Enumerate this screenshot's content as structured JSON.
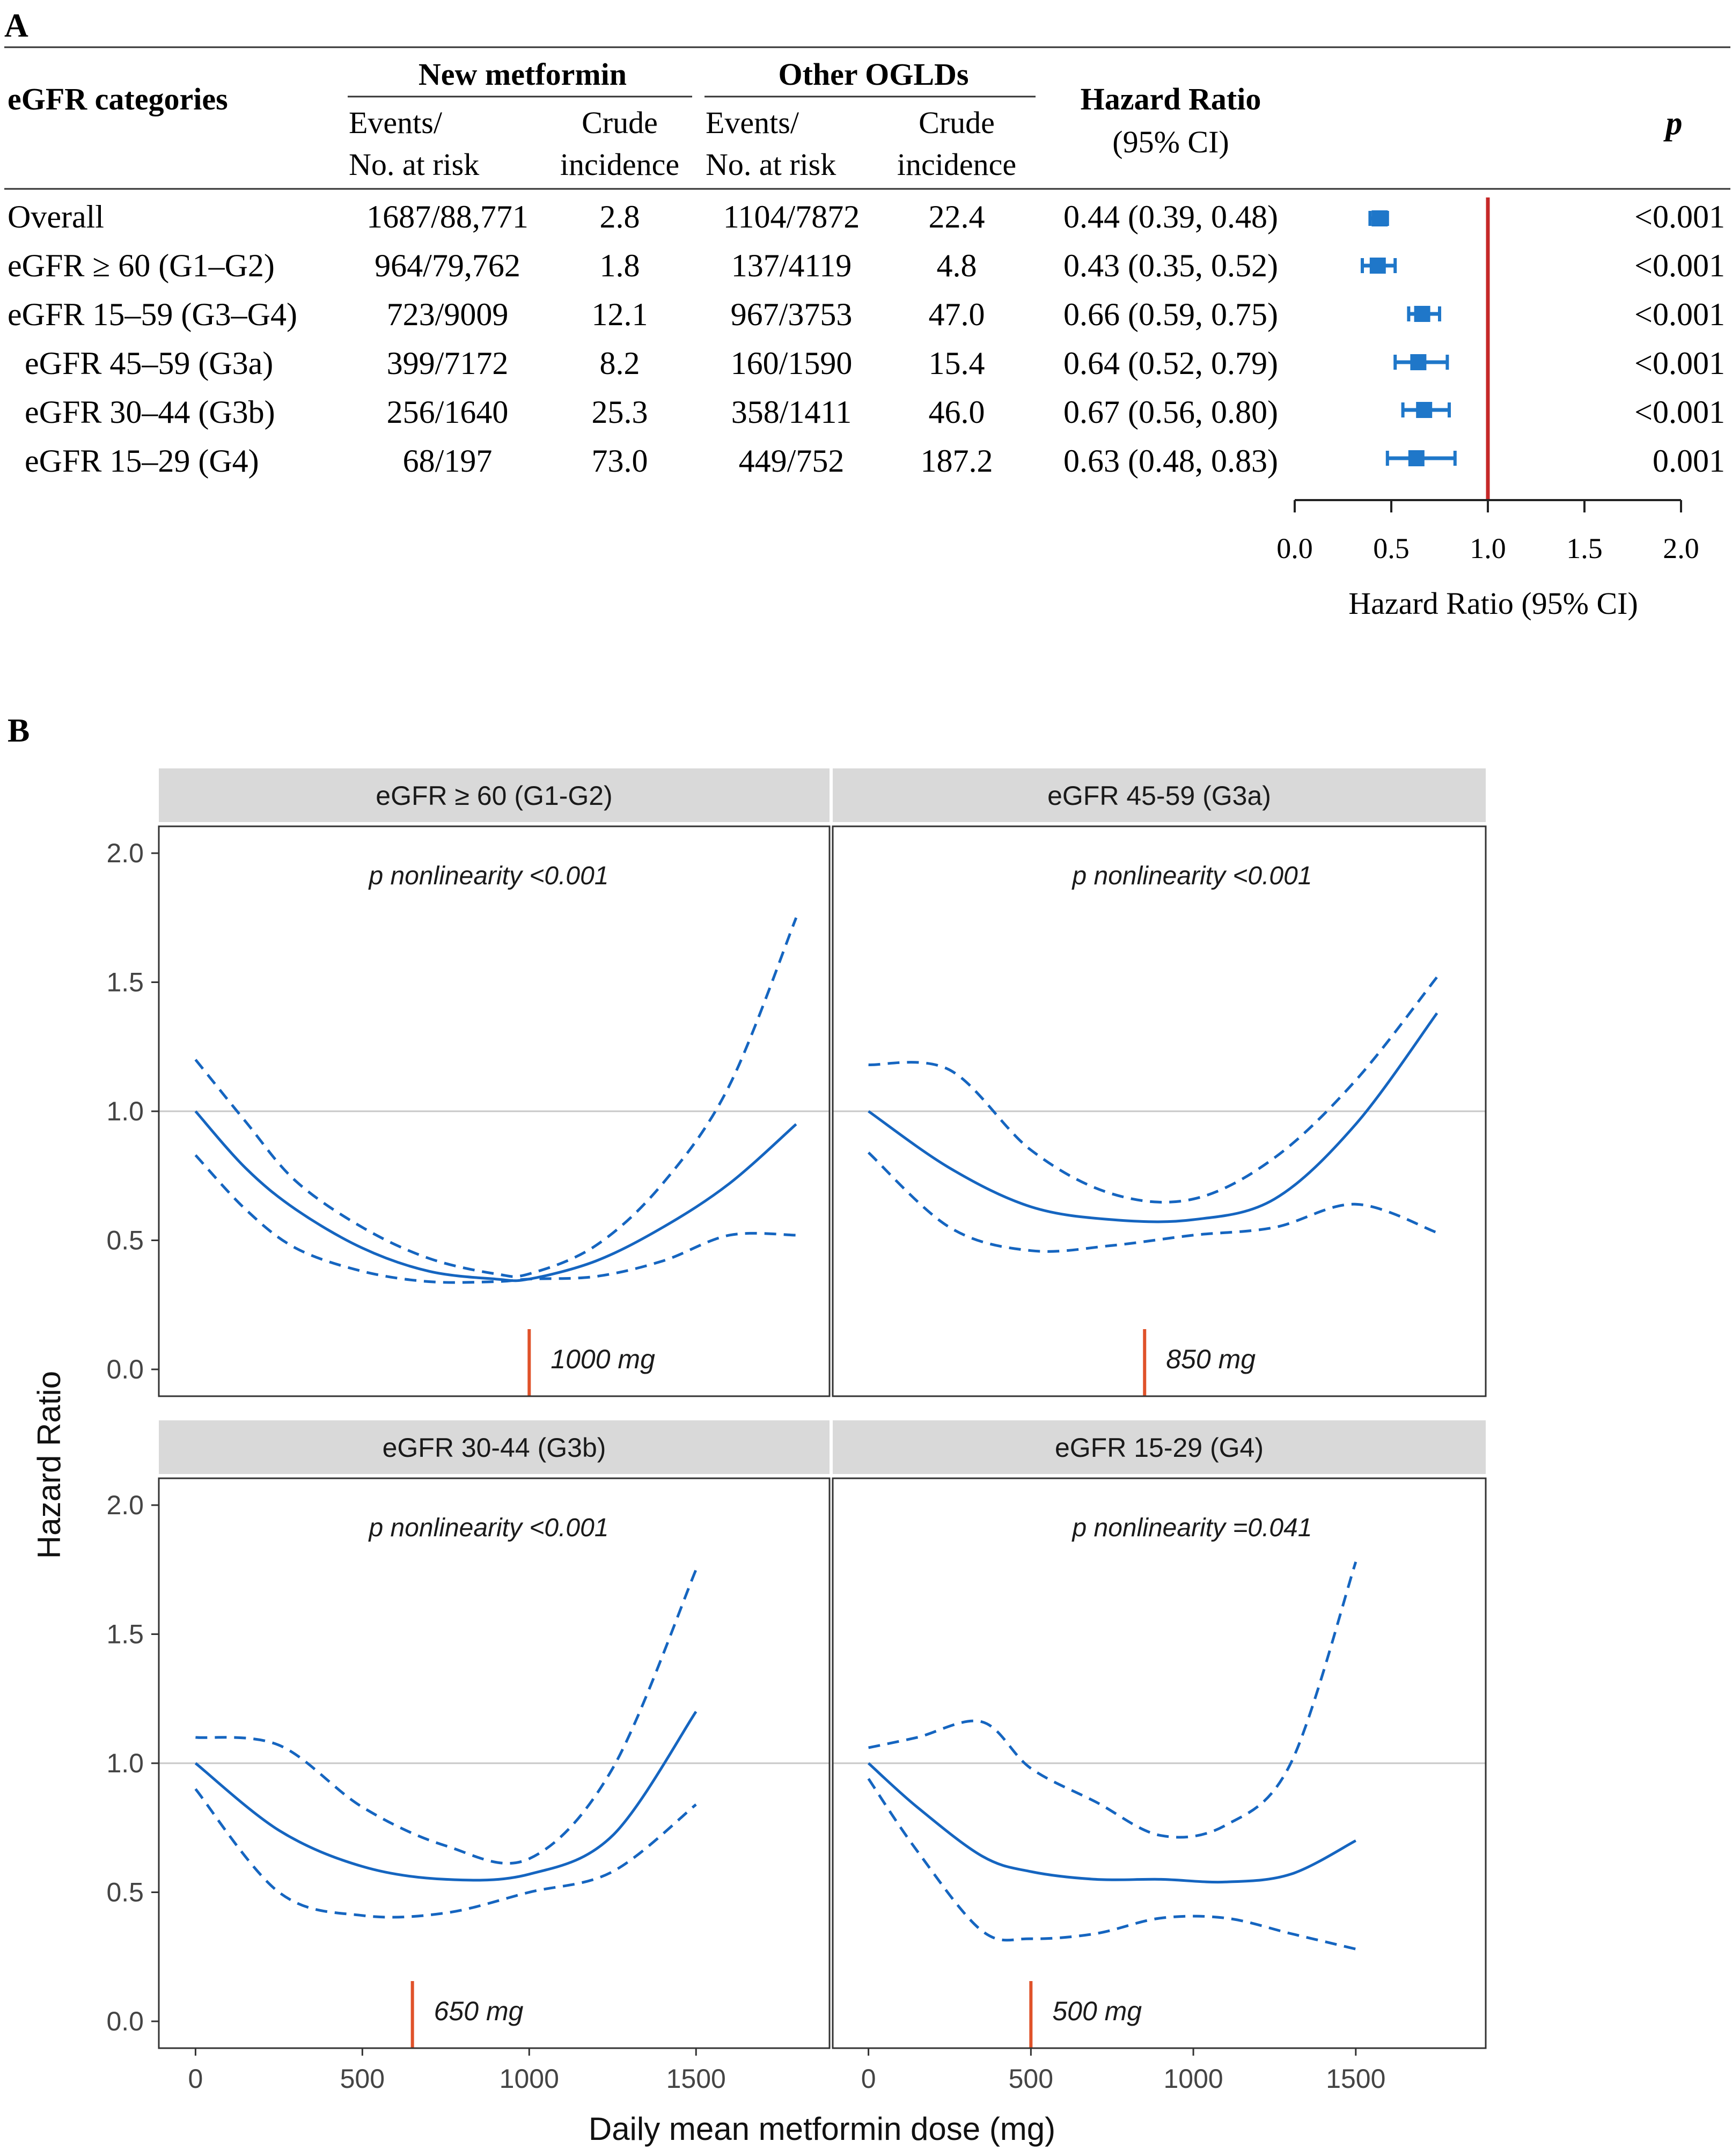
{
  "panel_a": {
    "label": "A",
    "headers": {
      "category": "eGFR categories",
      "group1": "New metformin",
      "group2": "Other OGLDs",
      "events1": "Events/",
      "atrisk1": "No. at risk",
      "crude1a": "Crude",
      "crude1b": "incidence",
      "events2": "Events/",
      "atrisk2": "No. at risk",
      "crude2a": "Crude",
      "crude2b": "incidence",
      "hr1": "Hazard Ratio",
      "hr2": "(95% CI)",
      "p": "p"
    },
    "rows": [
      {
        "label": "Overall",
        "a": "1687/88,771",
        "b": "2.8",
        "c": "1104/7872",
        "d": "22.4",
        "hr": "0.44 (0.39, 0.48)",
        "p": "<0.001"
      },
      {
        "label": "eGFR ≥ 60 (G1–G2)",
        "a": "964/79,762",
        "b": "1.8",
        "c": "137/4119",
        "d": "4.8",
        "hr": "0.43 (0.35, 0.52)",
        "p": "<0.001"
      },
      {
        "label": "eGFR 15–59 (G3–G4)",
        "a": "723/9009",
        "b": "12.1",
        "c": "967/3753",
        "d": "47.0",
        "hr": "0.66 (0.59, 0.75)",
        "p": "<0.001"
      },
      {
        "label": "eGFR 45–59 (G3a)",
        "a": "399/7172",
        "b": "8.2",
        "c": "160/1590",
        "d": "15.4",
        "hr": "0.64 (0.52, 0.79)",
        "p": "<0.001"
      },
      {
        "label": "eGFR 30–44 (G3b)",
        "a": "256/1640",
        "b": "25.3",
        "c": "358/1411",
        "d": "46.0",
        "hr": "0.67 (0.56, 0.80)",
        "p": "<0.001"
      },
      {
        "label": "eGFR 15–29 (G4)",
        "a": "68/197",
        "b": "73.0",
        "c": "449/752",
        "d": "187.2",
        "hr": "0.63 (0.48, 0.83)",
        "p": "0.001"
      }
    ],
    "forest_axis_label": "Hazard Ratio (95% CI)"
  },
  "panel_b": {
    "label": "B",
    "ylabel": "Hazard Ratio",
    "xlabel": "Daily mean metformin dose (mg)"
  },
  "colors": {
    "blue": "#1565C0",
    "marker": "#1f77c9",
    "red": "#c62828",
    "orange": "#e0522a",
    "strip": "#d9d9d9",
    "refline": "#c8c8c8"
  },
  "chart_data": [
    {
      "type": "forest",
      "title": "Hazard Ratio (95% CI)",
      "categories": [
        "Overall",
        "eGFR ≥ 60 (G1–G2)",
        "eGFR 15–59 (G3–G4)",
        "eGFR 45–59 (G3a)",
        "eGFR 30–44 (G3b)",
        "eGFR 15–29 (G4)"
      ],
      "hr": [
        0.44,
        0.43,
        0.66,
        0.64,
        0.67,
        0.63
      ],
      "lower": [
        0.39,
        0.35,
        0.59,
        0.52,
        0.56,
        0.48
      ],
      "upper": [
        0.48,
        0.52,
        0.75,
        0.79,
        0.8,
        0.83
      ],
      "xlim": [
        0,
        2.0
      ],
      "xticks": [
        "0.0",
        "0.5",
        "1.0",
        "1.5",
        "2.0"
      ],
      "xtick_values": [
        0,
        0.5,
        1.0,
        1.5,
        2.0
      ],
      "reference": 1.0,
      "xlabel": "Hazard Ratio (95% CI)"
    },
    {
      "type": "line",
      "facets": [
        {
          "title": "eGFR ≥ 60 (G1-G2)",
          "annotation": "p nonlinearity <0.001",
          "optimal_dose": 1000,
          "optimal_label": "1000 mg",
          "x": [
            0,
            150,
            300,
            500,
            700,
            900,
            1000,
            1200,
            1400,
            1600,
            1800
          ],
          "hr": [
            1.0,
            0.78,
            0.62,
            0.47,
            0.38,
            0.35,
            0.35,
            0.42,
            0.55,
            0.72,
            0.95
          ],
          "lower": [
            0.83,
            0.62,
            0.47,
            0.38,
            0.34,
            0.34,
            0.35,
            0.36,
            0.42,
            0.52,
            0.52
          ],
          "upper": [
            1.2,
            0.96,
            0.73,
            0.55,
            0.43,
            0.37,
            0.37,
            0.48,
            0.72,
            1.1,
            1.75
          ]
        },
        {
          "title": "eGFR 45-59 (G3a)",
          "annotation": "p nonlinearity <0.001",
          "optimal_dose": 850,
          "optimal_label": "850 mg",
          "x": [
            0,
            250,
            500,
            750,
            1000,
            1250,
            1500,
            1750
          ],
          "hr": [
            1.0,
            0.78,
            0.63,
            0.58,
            0.58,
            0.66,
            0.95,
            1.38
          ],
          "lower": [
            0.84,
            0.55,
            0.46,
            0.48,
            0.52,
            0.55,
            0.64,
            0.53
          ],
          "upper": [
            1.18,
            1.16,
            0.85,
            0.68,
            0.66,
            0.82,
            1.12,
            1.52
          ]
        },
        {
          "title": "eGFR 30-44 (G3b)",
          "annotation": "p nonlinearity <0.001",
          "optimal_dose": 650,
          "optimal_label": "650 mg",
          "x": [
            0,
            250,
            500,
            750,
            1000,
            1250,
            1500
          ],
          "hr": [
            1.0,
            0.74,
            0.6,
            0.55,
            0.57,
            0.72,
            1.2
          ],
          "lower": [
            0.9,
            0.5,
            0.41,
            0.42,
            0.5,
            0.58,
            0.84
          ],
          "upper": [
            1.1,
            1.07,
            0.83,
            0.68,
            0.63,
            0.98,
            1.75
          ]
        },
        {
          "title": "eGFR 15-29 (G4)",
          "annotation": "p nonlinearity =0.041",
          "optimal_dose": 500,
          "optimal_label": "500 mg",
          "x": [
            0,
            150,
            350,
            500,
            700,
            900,
            1100,
            1300,
            1500
          ],
          "hr": [
            1.0,
            0.83,
            0.64,
            0.58,
            0.55,
            0.55,
            0.54,
            0.57,
            0.7
          ],
          "lower": [
            0.94,
            0.66,
            0.35,
            0.32,
            0.34,
            0.4,
            0.4,
            0.34,
            0.28
          ],
          "upper": [
            1.06,
            1.1,
            1.16,
            0.98,
            0.85,
            0.72,
            0.76,
            1.0,
            1.78
          ]
        }
      ],
      "ylim": [
        0,
        2.0
      ],
      "yticks": [
        "0.0",
        "0.5",
        "1.0",
        "1.5",
        "2.0"
      ],
      "ytick_values": [
        0,
        0.5,
        1.0,
        1.5,
        2.0
      ],
      "xticks": [
        "0",
        "500",
        "1000",
        "1500"
      ],
      "xtick_values": [
        0,
        500,
        1000,
        1500
      ],
      "xlim": [
        -110,
        1900
      ],
      "xlabel": "Daily mean metformin dose (mg)",
      "ylabel": "Hazard Ratio",
      "reference": 1.0
    }
  ]
}
